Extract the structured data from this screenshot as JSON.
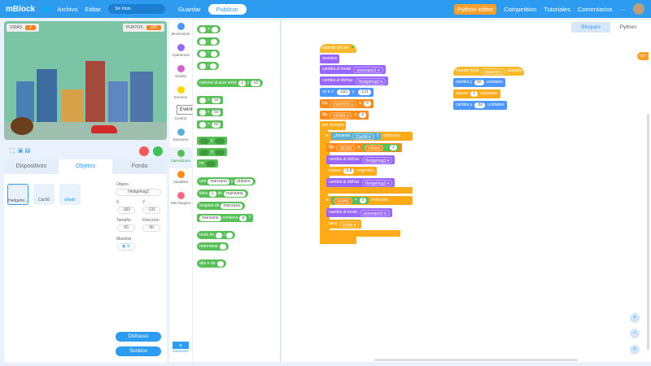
{
  "topbar": {
    "logo": "mBlock",
    "file": "Archivo",
    "edit": "Editar",
    "project_title": "Sin título",
    "save": "Guardar",
    "publish": "Publicar",
    "python_editor": "Python editor",
    "competition": "Competition",
    "tutorials": "Tutoriales",
    "comments": "Comentarios",
    "more": "···"
  },
  "stage": {
    "monitors": [
      {
        "label": "VIDAS",
        "value": "3"
      },
      {
        "label": "PUNTOS",
        "value": "160"
      }
    ]
  },
  "panel": {
    "tabs": [
      "Dispositivos",
      "Objetos",
      "Fondo"
    ],
    "sprites": [
      "Hedgeho...",
      "CarS6"
    ],
    "add_label": "añadir",
    "object_label": "Objeto",
    "object_name": "Hedgehog2",
    "x_label": "X",
    "x_value": "-183",
    "y_label": "Y",
    "y_value": "-131",
    "size_label": "Tamaño",
    "size_value": "60",
    "dir_label": "Dirección",
    "dir_value": "90",
    "show_label": "Muestra",
    "costumes": "Disfraces",
    "sounds": "Sonidos"
  },
  "categories": [
    "Movimiento",
    "Apariencia",
    "Sonido",
    "Eventos",
    "Control",
    "Sensores",
    "Operadores",
    "Variables",
    "Mis bloques"
  ],
  "category_colors": [
    "#4c97ff",
    "#9966ff",
    "#cf63cf",
    "#ffd500",
    "#ffab19",
    "#5cb1d6",
    "#59c059",
    "#ff8c1a",
    "#ff6680"
  ],
  "tooltip": "Eventos",
  "extension": "extensión",
  "palette": {
    "plus": "+",
    "minus": "-",
    "times": "*",
    "div": "/",
    "random": "número al azar entre",
    "r1": "1",
    "and_word": "y",
    "r2": "10",
    "gt": ">",
    "lt": "<",
    "eq": "=",
    "fifty": "50",
    "and": "y",
    "or": "o",
    "not": "no",
    "join": "une",
    "apple": "manzana",
    "banana": "plátano",
    "letter": "letra",
    "one": "1",
    "of": "de",
    "length": "longitud de",
    "contains": "contiene",
    "a": "a",
    "q": "?",
    "mod": "resto de",
    "round": "redondear",
    "abs": "abs ▾",
    "de": "de"
  },
  "workspace": {
    "tabs": [
      "Bloques",
      "Python"
    ],
    "s1": [
      "cuando clic en",
      "muestra",
      "cambia al fondo",
      "escenario1 ▾",
      "cambia al disfraz",
      "Hedgehog2 ▾",
      "ve a x:",
      "-183",
      "y:",
      "-131",
      "fija",
      "PUNTOS ▾",
      "a",
      "0",
      "VIDAS ▾",
      "3",
      "por siempre",
      "si",
      "¿tocando",
      "CarS6 ▾",
      "?",
      "entonces",
      "VIDAS",
      "-",
      "1",
      "Hedgehog3 ▾",
      "espera",
      "0.8",
      "segundos",
      "Hedgehog2 ▾",
      "=",
      "escenario2 ▾",
      "para",
      "todos ▾"
    ],
    "s2": [
      "cuando tecla",
      "espacio ▾",
      "pulsada",
      "cambia y",
      "50",
      "unidades",
      "espera",
      "1",
      "segundos",
      "-50"
    ]
  }
}
